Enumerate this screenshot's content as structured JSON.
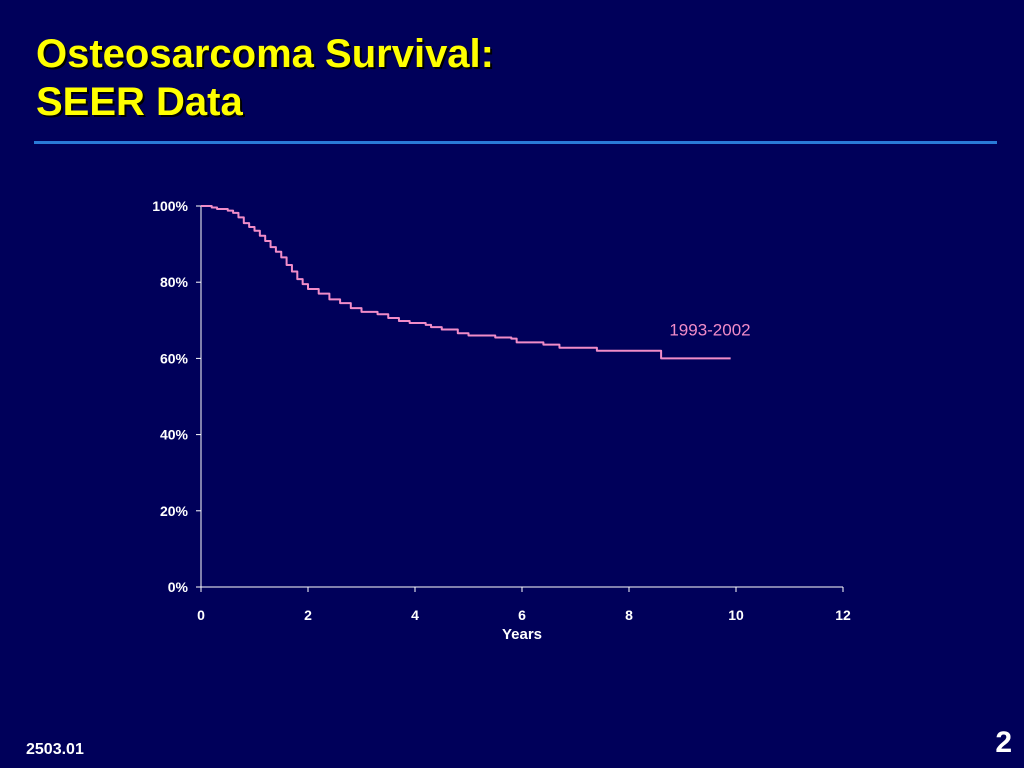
{
  "slide": {
    "title_line1": "Osteosarcoma Survival:",
    "title_line2": "SEER Data",
    "footer_code": "2503.01",
    "slide_number": "2"
  },
  "colors": {
    "background": "#00005a",
    "title": "#ffff00",
    "rule": "#2a7ad8",
    "axis": "#ffffff",
    "series": "#f08cc8"
  },
  "chart_data": {
    "type": "line",
    "title": "",
    "xlabel": "Years",
    "ylabel": "",
    "xlim": [
      0,
      12
    ],
    "ylim": [
      0,
      100
    ],
    "x_ticks": [
      "0",
      "2",
      "4",
      "6",
      "8",
      "10",
      "12"
    ],
    "y_ticks": [
      "0%",
      "20%",
      "40%",
      "60%",
      "80%",
      "100%"
    ],
    "grid": false,
    "series": [
      {
        "name": "1993-2002",
        "color": "#f08cc8",
        "step": true,
        "x": [
          0,
          0.2,
          0.3,
          0.5,
          0.6,
          0.7,
          0.8,
          0.9,
          1.0,
          1.1,
          1.2,
          1.3,
          1.4,
          1.5,
          1.6,
          1.7,
          1.8,
          1.9,
          2.0,
          2.2,
          2.4,
          2.6,
          2.8,
          3.0,
          3.3,
          3.5,
          3.7,
          3.9,
          4.2,
          4.3,
          4.5,
          4.8,
          5.0,
          5.5,
          5.8,
          5.9,
          6.4,
          6.7,
          7.3,
          7.4,
          8.5,
          8.6,
          9.9
        ],
        "values": [
          100,
          99.6,
          99.2,
          98.8,
          98.2,
          97,
          95.5,
          94.5,
          93.5,
          92.2,
          90.8,
          89.2,
          88,
          86.5,
          84.5,
          82.8,
          80.8,
          79.5,
          78.2,
          77,
          75.5,
          74.5,
          73.2,
          72.2,
          71.6,
          70.6,
          69.8,
          69.3,
          68.8,
          68.2,
          67.6,
          66.6,
          66,
          65.5,
          65.2,
          64.2,
          63.6,
          62.8,
          62.8,
          62,
          62,
          60,
          60
        ]
      }
    ]
  }
}
